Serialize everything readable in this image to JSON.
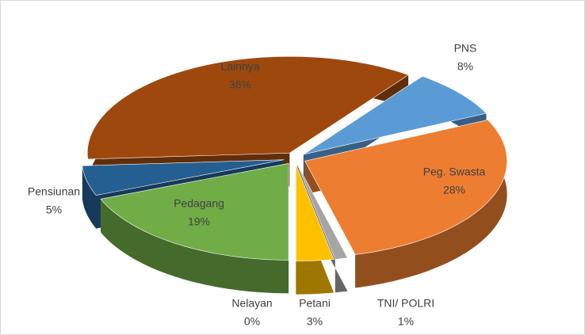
{
  "chart_data": {
    "type": "pie",
    "categories": [
      "PNS",
      "Peg. Swasta",
      "TNI/ POLRI",
      "Petani",
      "Nelayan",
      "Pedagang",
      "Pensiunan",
      "Lainnya"
    ],
    "values": [
      8,
      28,
      1,
      3,
      0,
      19,
      5,
      36
    ],
    "value_labels": [
      "8%",
      "28%",
      "1%",
      "3%",
      "0%",
      "19%",
      "5%",
      "36%"
    ],
    "colors": [
      "#5b9bd5",
      "#ed7d31",
      "#a5a5a5",
      "#ffc000",
      "#4472c4",
      "#70ad47",
      "#255e91",
      "#9e480e"
    ]
  }
}
